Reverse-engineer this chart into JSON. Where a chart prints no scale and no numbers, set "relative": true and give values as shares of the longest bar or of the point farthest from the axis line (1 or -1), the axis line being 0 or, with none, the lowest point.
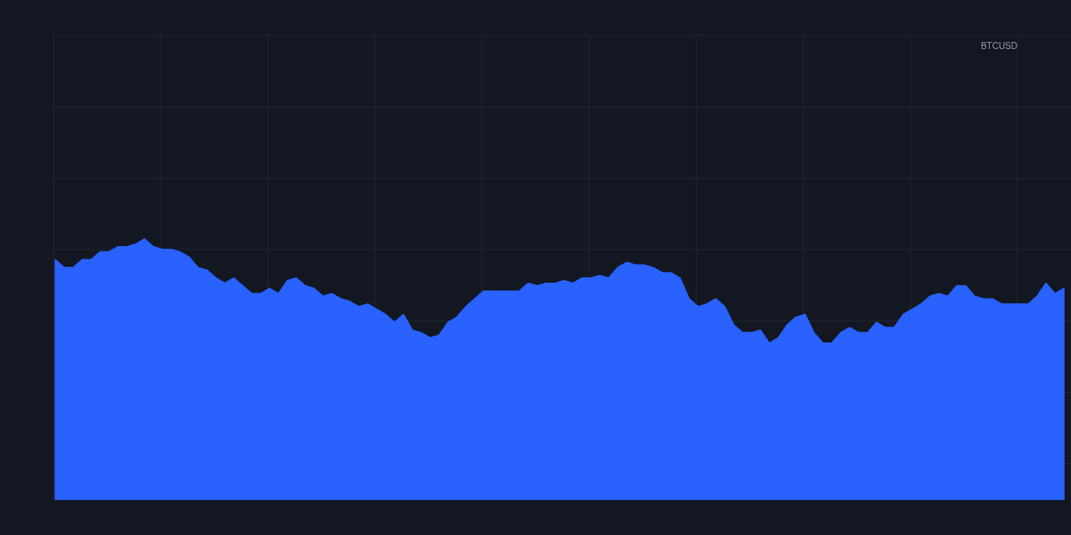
{
  "chart_data": {
    "type": "area",
    "title": "BTCUSD",
    "relative": true,
    "grid": true,
    "color": "#2962ff",
    "categories": [
      null,
      null,
      null,
      null,
      null,
      null,
      null,
      null,
      null,
      null,
      null,
      null,
      null,
      null,
      null,
      null,
      null,
      null,
      null,
      null,
      null,
      null,
      null,
      null,
      null,
      null,
      null,
      null,
      null,
      null,
      null,
      null,
      null,
      null,
      null,
      null,
      null,
      null,
      null,
      null,
      null,
      null,
      null,
      null,
      null,
      null,
      null,
      null,
      null,
      null,
      null,
      null,
      null,
      null,
      null,
      null,
      null,
      null,
      null,
      null,
      null,
      null,
      null,
      null,
      null,
      null,
      null,
      null,
      null,
      null,
      null,
      null,
      null,
      null,
      null,
      null,
      null,
      null,
      null,
      null,
      null,
      null,
      null,
      null,
      null,
      null,
      null,
      null,
      null,
      null,
      null,
      null,
      null,
      null,
      null,
      null,
      null,
      null,
      null,
      null,
      null,
      null,
      null,
      null,
      null,
      null,
      null,
      null,
      null,
      null,
      null,
      null,
      null,
      null
    ],
    "values": [
      0.92,
      0.89,
      0.89,
      0.92,
      0.92,
      0.95,
      0.95,
      0.97,
      0.97,
      0.98,
      1.0,
      0.97,
      0.96,
      0.96,
      0.95,
      0.93,
      0.89,
      0.88,
      0.85,
      0.83,
      0.85,
      0.82,
      0.79,
      0.79,
      0.81,
      0.79,
      0.84,
      0.85,
      0.82,
      0.81,
      0.78,
      0.79,
      0.77,
      0.76,
      0.74,
      0.75,
      0.73,
      0.71,
      0.68,
      0.71,
      0.65,
      0.64,
      0.62,
      0.63,
      0.68,
      0.7,
      0.74,
      0.77,
      0.8,
      0.8,
      0.8,
      0.8,
      0.8,
      0.83,
      0.82,
      0.83,
      0.83,
      0.84,
      0.83,
      0.85,
      0.85,
      0.86,
      0.85,
      0.89,
      0.91,
      0.9,
      0.9,
      0.89,
      0.87,
      0.87,
      0.85,
      0.77,
      0.74,
      0.75,
      0.77,
      0.74,
      0.67,
      0.64,
      0.64,
      0.65,
      0.6,
      0.62,
      0.67,
      0.7,
      0.71,
      0.64,
      0.6,
      0.6,
      0.64,
      0.66,
      0.64,
      0.64,
      0.68,
      0.66,
      0.66,
      0.71,
      0.73,
      0.75,
      0.78,
      0.79,
      0.78,
      0.82,
      0.82,
      0.78,
      0.77,
      0.77,
      0.75,
      0.75,
      0.75,
      0.75,
      0.78,
      0.83,
      0.79,
      0.81
    ]
  }
}
